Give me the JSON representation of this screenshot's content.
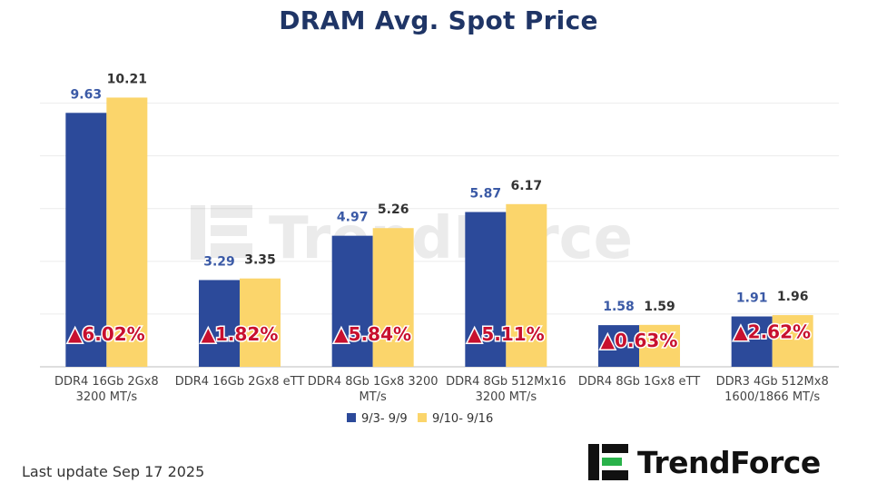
{
  "title": "DRAM Avg. Spot Price",
  "footer": {
    "last_update": "Last update Sep 17  2025"
  },
  "logo": {
    "text": "TrendForce"
  },
  "watermark": {
    "text": "TrendForce"
  },
  "colors": {
    "series1": "#2c4a9a",
    "series2": "#fbd56b",
    "change": "#c8102e",
    "title": "#1f3566"
  },
  "chart_data": {
    "type": "bar",
    "title": "DRAM Avg. Spot Price",
    "categories": [
      [
        "DDR4 16Gb 2Gx8",
        "3200 MT/s"
      ],
      [
        "DDR4 16Gb 2Gx8 eTT"
      ],
      [
        "DDR4 8Gb 1Gx8 3200",
        "MT/s"
      ],
      [
        "DDR4 8Gb 512Mx16",
        "3200 MT/s"
      ],
      [
        "DDR4 8Gb 1Gx8 eTT"
      ],
      [
        "DDR3 4Gb 512Mx8",
        "1600/1866  MT/s"
      ]
    ],
    "series": [
      {
        "name": "9/3- 9/9",
        "values": [
          9.63,
          3.29,
          4.97,
          5.87,
          1.58,
          1.91
        ],
        "labels": [
          "9.63",
          "3.29",
          "4.97",
          "5.87",
          "1.58",
          "1.91"
        ]
      },
      {
        "name": "9/10- 9/16",
        "values": [
          10.21,
          3.35,
          5.26,
          6.17,
          1.59,
          1.96
        ],
        "labels": [
          "10.21",
          "3.35",
          "5.26",
          "6.17",
          "1.59",
          "1.96"
        ]
      }
    ],
    "changes": [
      "6.02%",
      "1.82%",
      "5.84%",
      "5.11%",
      "0.63%",
      "2.62%"
    ],
    "change_symbol": "▲",
    "ylim": [
      0,
      11.5
    ],
    "grid": true,
    "legend_position": "bottom"
  }
}
